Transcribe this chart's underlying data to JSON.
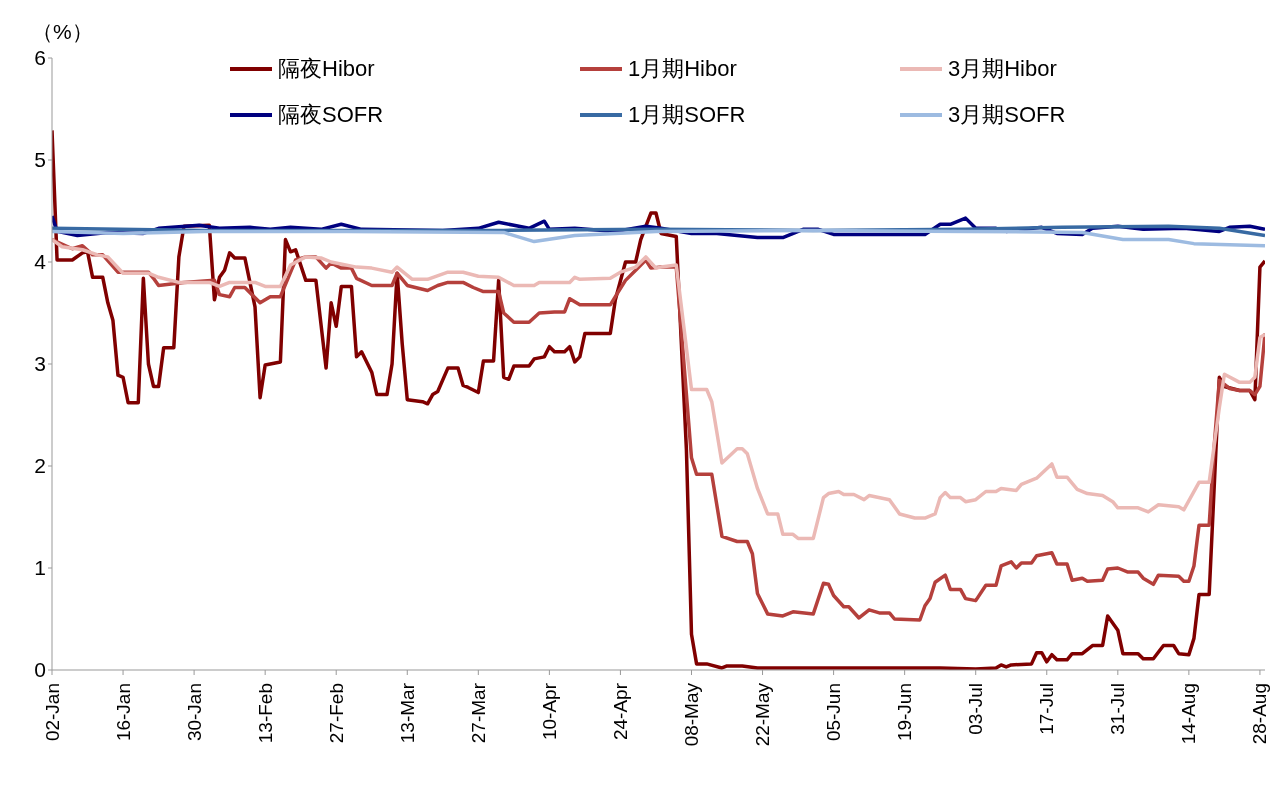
{
  "chart_data": {
    "type": "line",
    "ylabel": "（%）",
    "legend": "top",
    "xlim": [
      "--01-02",
      "--08-29"
    ],
    "xticks": [
      {
        "value": "--01-02",
        "label": "02-Jan"
      },
      {
        "value": "--01-16",
        "label": "16-Jan"
      },
      {
        "value": "--01-30",
        "label": "30-Jan"
      },
      {
        "value": "--02-13",
        "label": "13-Feb"
      },
      {
        "value": "--02-27",
        "label": "27-Feb"
      },
      {
        "value": "--03-13",
        "label": "13-Mar"
      },
      {
        "value": "--03-27",
        "label": "27-Mar"
      },
      {
        "value": "--04-10",
        "label": "10-Apr"
      },
      {
        "value": "--04-24",
        "label": "24-Apr"
      },
      {
        "value": "--05-08",
        "label": "08-May"
      },
      {
        "value": "--05-22",
        "label": "22-May"
      },
      {
        "value": "--06-05",
        "label": "05-Jun"
      },
      {
        "value": "--06-19",
        "label": "19-Jun"
      },
      {
        "value": "--07-03",
        "label": "03-Jul"
      },
      {
        "value": "--07-17",
        "label": "17-Jul"
      },
      {
        "value": "--07-31",
        "label": "31-Jul"
      },
      {
        "value": "--08-14",
        "label": "14-Aug"
      },
      {
        "value": "--08-28",
        "label": "28-Aug"
      }
    ],
    "ylim": [
      0,
      6
    ],
    "yticks": [
      0,
      1,
      2,
      3,
      4,
      5,
      6
    ],
    "series": [
      {
        "name": "隔夜Hibor",
        "color": "#800000",
        "x": [
          "--01-02",
          "--01-03",
          "--01-06",
          "--01-08",
          "--01-09",
          "--01-10",
          "--01-12",
          "--01-13",
          "--01-14",
          "--01-15",
          "--01-16",
          "--01-17",
          "--01-19",
          "--01-20",
          "--01-21",
          "--01-22",
          "--01-23",
          "--01-24",
          "--01-26",
          "--01-27",
          "--01-28",
          "--02-02",
          "--02-03",
          "--02-04",
          "--02-05",
          "--02-06",
          "--02-07",
          "--02-09",
          "--02-11",
          "--02-12",
          "--02-13",
          "--02-16",
          "--02-17",
          "--02-18",
          "--02-19",
          "--02-21",
          "--02-23",
          "--02-25",
          "--02-26",
          "--02-27",
          "--02-28",
          "--03-02",
          "--03-03",
          "--03-04",
          "--03-06",
          "--03-07",
          "--03-09",
          "--03-10",
          "--03-11",
          "--03-12",
          "--03-13",
          "--03-16",
          "--03-17",
          "--03-18",
          "--03-19",
          "--03-21",
          "--03-23",
          "--03-24",
          "--03-25",
          "--03-27",
          "--03-28",
          "--03-30",
          "--03-31",
          "--04-01",
          "--04-02",
          "--04-03",
          "--04-06",
          "--04-07",
          "--04-09",
          "--04-10",
          "--04-11",
          "--04-13",
          "--04-14",
          "--04-15",
          "--04-16",
          "--04-17",
          "--04-22",
          "--04-23",
          "--04-25",
          "--04-27",
          "--04-28",
          "--04-30",
          "--05-01",
          "--05-02",
          "--05-05",
          "--05-07",
          "--05-08",
          "--05-09",
          "--05-11",
          "--05-14",
          "--05-15",
          "--05-18",
          "--05-21",
          "--06-26",
          "--07-03",
          "--07-07",
          "--07-08",
          "--07-09",
          "--07-10",
          "--07-14",
          "--07-15",
          "--07-16",
          "--07-17",
          "--07-18",
          "--07-19",
          "--07-21",
          "--07-22",
          "--07-24",
          "--07-26",
          "--07-28",
          "--07-29",
          "--07-31",
          "--08-01",
          "--08-04",
          "--08-05",
          "--08-07",
          "--08-09",
          "--08-11",
          "--08-12",
          "--08-14",
          "--08-15",
          "--08-16",
          "--08-18",
          "--08-20",
          "--08-21",
          "--08-24",
          "--08-26",
          "--08-27",
          "--08-28",
          "--08-29"
        ],
        "values": [
          5.29,
          4.02,
          4.02,
          4.09,
          4.1,
          3.85,
          3.85,
          3.6,
          3.43,
          2.89,
          2.87,
          2.62,
          2.62,
          3.84,
          3.0,
          2.78,
          2.78,
          3.16,
          3.16,
          4.05,
          4.35,
          4.36,
          3.63,
          3.85,
          3.92,
          4.09,
          4.04,
          4.04,
          3.56,
          2.67,
          2.99,
          3.02,
          4.22,
          4.1,
          4.12,
          3.82,
          3.82,
          2.96,
          3.6,
          3.37,
          3.76,
          3.76,
          3.07,
          3.12,
          2.92,
          2.7,
          2.7,
          3.0,
          3.89,
          3.2,
          2.65,
          2.63,
          2.61,
          2.7,
          2.73,
          2.96,
          2.96,
          2.79,
          2.77,
          2.72,
          3.03,
          3.03,
          3.82,
          2.87,
          2.85,
          2.98,
          2.98,
          3.05,
          3.07,
          3.17,
          3.12,
          3.12,
          3.17,
          3.02,
          3.07,
          3.3,
          3.3,
          3.63,
          4.0,
          4.0,
          4.22,
          4.48,
          4.48,
          4.28,
          4.25,
          2.16,
          0.35,
          0.06,
          0.06,
          0.02,
          0.04,
          0.04,
          0.02,
          0.02,
          0.01,
          0.02,
          0.05,
          0.03,
          0.05,
          0.06,
          0.17,
          0.17,
          0.08,
          0.15,
          0.1,
          0.1,
          0.16,
          0.16,
          0.24,
          0.24,
          0.53,
          0.39,
          0.16,
          0.16,
          0.11,
          0.11,
          0.24,
          0.24,
          0.16,
          0.15,
          0.31,
          0.74,
          0.74,
          2.87,
          2.78,
          2.74,
          2.74,
          2.65,
          3.95,
          4.01
        ]
      },
      {
        "name": "1月期Hibor",
        "color": "#b5403c",
        "x": [
          "--01-02",
          "--01-06",
          "--01-08",
          "--01-10",
          "--01-12",
          "--01-15",
          "--01-21",
          "--01-22",
          "--01-23",
          "--01-28",
          "--02-03",
          "--02-04",
          "--02-06",
          "--02-07",
          "--02-09",
          "--02-12",
          "--02-14",
          "--02-16",
          "--02-19",
          "--02-21",
          "--02-23",
          "--02-25",
          "--02-26",
          "--02-28",
          "--03-02",
          "--03-03",
          "--03-06",
          "--03-10",
          "--03-11",
          "--03-13",
          "--03-17",
          "--03-19",
          "--03-21",
          "--03-24",
          "--03-26",
          "--03-28",
          "--03-31",
          "--04-01",
          "--04-03",
          "--04-06",
          "--04-08",
          "--04-11",
          "--04-13",
          "--04-14",
          "--04-16",
          "--04-22",
          "--04-23",
          "--04-25",
          "--04-27",
          "--04-29",
          "--04-30",
          "--05-02",
          "--05-05",
          "--05-08",
          "--05-09",
          "--05-12",
          "--05-14",
          "--05-17",
          "--05-19",
          "--05-20",
          "--05-21",
          "--05-23",
          "--05-26",
          "--05-28",
          "--06-01",
          "--06-03",
          "--06-04",
          "--06-05",
          "--06-07",
          "--06-08",
          "--06-10",
          "--06-12",
          "--06-14",
          "--06-16",
          "--06-17",
          "--06-22",
          "--06-23",
          "--06-24",
          "--06-25",
          "--06-27",
          "--06-28",
          "--06-30",
          "--07-01",
          "--07-03",
          "--07-05",
          "--07-07",
          "--07-08",
          "--07-10",
          "--07-11",
          "--07-12",
          "--07-14",
          "--07-15",
          "--07-18",
          "--07-19",
          "--07-21",
          "--07-22",
          "--07-24",
          "--07-25",
          "--07-28",
          "--07-29",
          "--07-31",
          "--08-02",
          "--08-04",
          "--08-05",
          "--08-07",
          "--08-08",
          "--08-12",
          "--08-13",
          "--08-14",
          "--08-15",
          "--08-16",
          "--08-18",
          "--08-19",
          "--08-20",
          "--08-22",
          "--08-24",
          "--08-26",
          "--08-27",
          "--08-28",
          "--08-29"
        ],
        "values": [
          4.22,
          4.13,
          4.16,
          4.07,
          4.07,
          3.9,
          3.9,
          3.84,
          3.77,
          3.8,
          3.82,
          3.68,
          3.66,
          3.75,
          3.75,
          3.6,
          3.66,
          3.66,
          4.02,
          4.05,
          4.05,
          3.94,
          3.99,
          3.94,
          3.94,
          3.84,
          3.77,
          3.77,
          3.89,
          3.77,
          3.72,
          3.77,
          3.8,
          3.8,
          3.75,
          3.71,
          3.71,
          3.5,
          3.41,
          3.41,
          3.5,
          3.51,
          3.51,
          3.64,
          3.58,
          3.58,
          3.66,
          3.82,
          3.92,
          4.02,
          3.94,
          3.95,
          3.95,
          2.08,
          1.92,
          1.92,
          1.31,
          1.26,
          1.26,
          1.14,
          0.75,
          0.55,
          0.53,
          0.57,
          0.55,
          0.85,
          0.84,
          0.73,
          0.62,
          0.62,
          0.51,
          0.59,
          0.56,
          0.56,
          0.5,
          0.49,
          0.63,
          0.7,
          0.86,
          0.93,
          0.79,
          0.79,
          0.7,
          0.68,
          0.83,
          0.83,
          1.02,
          1.06,
          1.0,
          1.05,
          1.05,
          1.12,
          1.15,
          1.04,
          1.04,
          0.88,
          0.9,
          0.87,
          0.88,
          0.99,
          1.0,
          0.96,
          0.96,
          0.9,
          0.84,
          0.93,
          0.92,
          0.87,
          0.87,
          1.02,
          1.42,
          1.42,
          2.2,
          2.84,
          2.76,
          2.74,
          2.74,
          2.7,
          2.78,
          3.3
        ]
      },
      {
        "name": "3月期Hibor",
        "color": "#ebb9b5",
        "x": [
          "--01-02",
          "--01-04",
          "--01-08",
          "--01-11",
          "--01-13",
          "--01-16",
          "--01-21",
          "--01-23",
          "--01-27",
          "--02-02",
          "--02-04",
          "--02-06",
          "--02-11",
          "--02-13",
          "--02-16",
          "--02-18",
          "--02-21",
          "--02-24",
          "--02-26",
          "--03-03",
          "--03-06",
          "--03-10",
          "--03-11",
          "--03-14",
          "--03-17",
          "--03-21",
          "--03-24",
          "--03-27",
          "--03-31",
          "--04-03",
          "--04-07",
          "--04-08",
          "--04-14",
          "--04-15",
          "--04-16",
          "--04-22",
          "--04-24",
          "--04-27",
          "--04-29",
          "--05-01",
          "--05-02",
          "--05-05",
          "--05-08",
          "--05-11",
          "--05-12",
          "--05-14",
          "--05-17",
          "--05-18",
          "--05-19",
          "--05-21",
          "--05-23",
          "--05-25",
          "--05-26",
          "--05-28",
          "--05-29",
          "--06-01",
          "--06-03",
          "--06-04",
          "--06-06",
          "--06-07",
          "--06-09",
          "--06-11",
          "--06-12",
          "--06-16",
          "--06-18",
          "--06-21",
          "--06-23",
          "--06-25",
          "--06-26",
          "--06-27",
          "--06-28",
          "--06-30",
          "--07-01",
          "--07-03",
          "--07-05",
          "--07-07",
          "--07-08",
          "--07-11",
          "--07-12",
          "--07-15",
          "--07-18",
          "--07-19",
          "--07-21",
          "--07-23",
          "--07-25",
          "--07-28",
          "--07-30",
          "--07-31",
          "--08-04",
          "--08-06",
          "--08-08",
          "--08-12",
          "--08-13",
          "--08-16",
          "--08-18",
          "--08-20",
          "--08-21",
          "--08-24",
          "--08-26",
          "--08-27",
          "--08-28",
          "--08-29"
        ],
        "values": [
          4.22,
          4.15,
          4.12,
          4.07,
          4.05,
          3.89,
          3.89,
          3.85,
          3.8,
          3.8,
          3.76,
          3.8,
          3.8,
          3.76,
          3.76,
          3.97,
          4.05,
          4.04,
          4.0,
          3.95,
          3.94,
          3.9,
          3.95,
          3.83,
          3.83,
          3.9,
          3.9,
          3.86,
          3.85,
          3.77,
          3.77,
          3.8,
          3.8,
          3.85,
          3.83,
          3.84,
          3.9,
          3.95,
          4.05,
          3.94,
          3.95,
          3.97,
          2.75,
          2.75,
          2.63,
          2.03,
          2.17,
          2.17,
          2.12,
          1.78,
          1.53,
          1.53,
          1.33,
          1.33,
          1.29,
          1.29,
          1.69,
          1.73,
          1.75,
          1.72,
          1.72,
          1.67,
          1.71,
          1.67,
          1.53,
          1.49,
          1.49,
          1.53,
          1.69,
          1.74,
          1.69,
          1.69,
          1.65,
          1.67,
          1.75,
          1.75,
          1.78,
          1.76,
          1.82,
          1.88,
          2.02,
          1.89,
          1.89,
          1.77,
          1.73,
          1.71,
          1.65,
          1.59,
          1.59,
          1.55,
          1.62,
          1.6,
          1.57,
          1.84,
          1.84,
          2.57,
          2.9,
          2.82,
          2.82,
          2.87,
          3.26,
          3.29
        ]
      },
      {
        "name": "隔夜SOFR",
        "color": "#00007f",
        "x": [
          "--01-02",
          "--01-03",
          "--01-07",
          "--01-13",
          "--01-20",
          "--01-23",
          "--01-31",
          "--02-04",
          "--02-10",
          "--02-14",
          "--02-18",
          "--02-24",
          "--02-28",
          "--03-04",
          "--03-20",
          "--03-27",
          "--03-31",
          "--04-03",
          "--04-06",
          "--04-09",
          "--04-10",
          "--04-15",
          "--04-23",
          "--04-29",
          "--05-02",
          "--05-08",
          "--05-13",
          "--05-21",
          "--05-26",
          "--05-30",
          "--06-02",
          "--06-05",
          "--06-15",
          "--06-23",
          "--06-26",
          "--06-28",
          "--07-01",
          "--07-03",
          "--07-07",
          "--07-09",
          "--07-16",
          "--07-19",
          "--07-24",
          "--07-26",
          "--07-31",
          "--08-05",
          "--08-13",
          "--08-20",
          "--08-22",
          "--08-26",
          "--08-29"
        ],
        "values": [
          4.45,
          4.3,
          4.26,
          4.29,
          4.28,
          4.33,
          4.36,
          4.33,
          4.34,
          4.32,
          4.34,
          4.32,
          4.37,
          4.32,
          4.31,
          4.33,
          4.39,
          4.36,
          4.33,
          4.4,
          4.32,
          4.33,
          4.3,
          4.35,
          4.33,
          4.28,
          4.28,
          4.24,
          4.24,
          4.32,
          4.32,
          4.27,
          4.27,
          4.27,
          4.37,
          4.37,
          4.43,
          4.33,
          4.33,
          4.3,
          4.34,
          4.28,
          4.27,
          4.33,
          4.35,
          4.32,
          4.33,
          4.3,
          4.34,
          4.35,
          4.32
        ]
      },
      {
        "name": "1月期SOFR",
        "color": "#386aa3",
        "x": [
          "--01-02",
          "--02-01",
          "--03-01",
          "--04-01",
          "--05-01",
          "--06-01",
          "--07-01",
          "--07-20",
          "--08-10",
          "--08-20",
          "--08-29"
        ],
        "values": [
          4.33,
          4.31,
          4.31,
          4.31,
          4.32,
          4.31,
          4.32,
          4.34,
          4.35,
          4.33,
          4.26
        ]
      },
      {
        "name": "3月期SOFR",
        "color": "#9dbbe1",
        "x": [
          "--01-02",
          "--01-16",
          "--02-01",
          "--03-01",
          "--04-01",
          "--04-07",
          "--04-15",
          "--05-01",
          "--06-01",
          "--07-01",
          "--07-24",
          "--08-01",
          "--08-10",
          "--08-15",
          "--08-29"
        ],
        "values": [
          4.3,
          4.28,
          4.3,
          4.3,
          4.29,
          4.2,
          4.26,
          4.3,
          4.31,
          4.3,
          4.29,
          4.22,
          4.22,
          4.18,
          4.16
        ]
      }
    ]
  }
}
